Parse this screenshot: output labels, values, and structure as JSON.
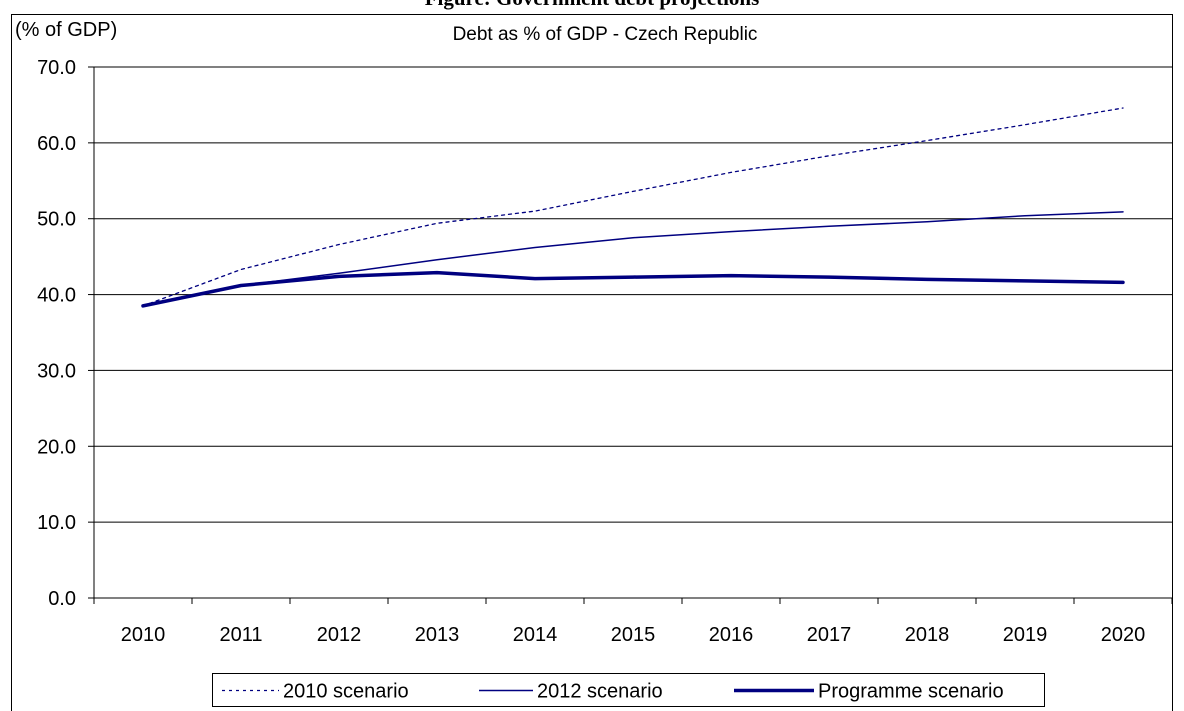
{
  "figure_heading": "Figure: Government debt projections",
  "chart_data": {
    "type": "line",
    "title": "Debt as % of GDP - Czech Republic",
    "ylabel": "(% of GDP)",
    "xlabel": "",
    "ylim": [
      0,
      70
    ],
    "yticks": [
      "0.0",
      "10.0",
      "20.0",
      "30.0",
      "40.0",
      "50.0",
      "60.0",
      "70.0"
    ],
    "categories": [
      "2010",
      "2011",
      "2012",
      "2013",
      "2014",
      "2015",
      "2016",
      "2017",
      "2018",
      "2019",
      "2020"
    ],
    "grid": true,
    "legend_position": "bottom",
    "series": [
      {
        "name": "2010 scenario",
        "style": "dotted",
        "color": "#000080",
        "values": [
          38.5,
          43.3,
          46.6,
          49.4,
          51.0,
          53.6,
          56.1,
          58.3,
          60.3,
          62.4,
          64.6
        ]
      },
      {
        "name": "2012 scenario",
        "style": "solid-thin",
        "color": "#000080",
        "values": [
          38.5,
          41.2,
          42.8,
          44.6,
          46.2,
          47.5,
          48.3,
          49.0,
          49.6,
          50.4,
          50.9
        ]
      },
      {
        "name": "Programme scenario",
        "style": "solid-thick",
        "color": "#000080",
        "values": [
          38.5,
          41.2,
          42.4,
          42.9,
          42.1,
          42.3,
          42.5,
          42.3,
          42.0,
          41.8,
          41.6
        ]
      }
    ]
  }
}
